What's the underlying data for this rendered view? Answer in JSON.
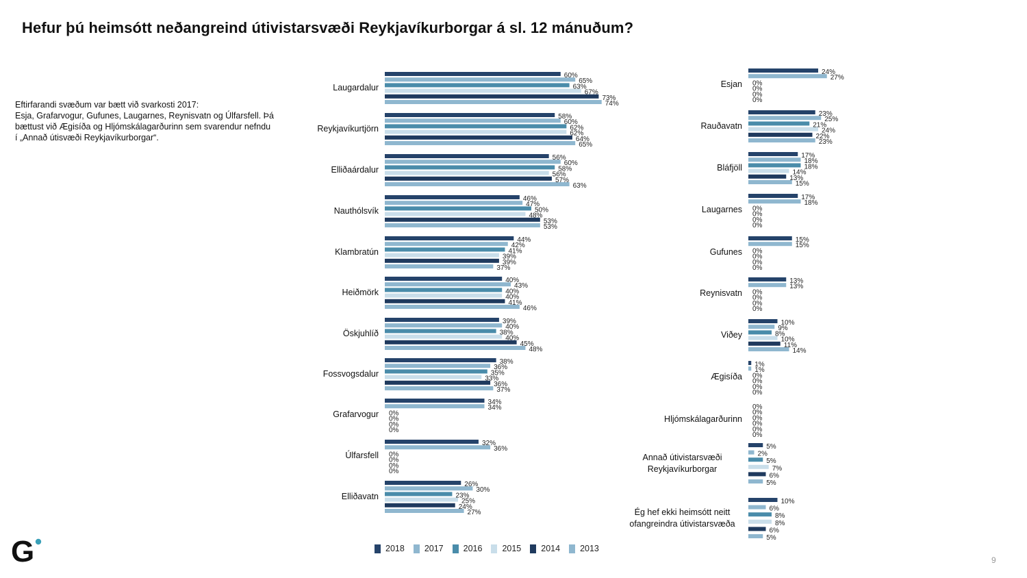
{
  "title": "Hefur þú heimsótt neðangreind útivistarsvæði Reykjavíkurborgar á sl. 12 mánuðum?",
  "note": {
    "line1": "Eftirfarandi svæðum var bætt við svarkosti 2017:",
    "line2": "Esja, Grafarvogur, Gufunes, Laugarnes, Reynisvatn og Úlfarsfell. Þá",
    "line3": "bættust við Ægisíða og Hljómskálagarðurinn sem svarendur nefndu",
    "line4": "í „Annað útisvæði Reykjavíkurborgar“."
  },
  "page_number": "9",
  "logo": {
    "text": "G",
    "dot_color": "#3aa0b8"
  },
  "chart_data": [
    {
      "type": "bar",
      "orientation": "horizontal",
      "unit": "%",
      "legend_position": "bottom",
      "grid": false,
      "categories": [
        "Laugardalur",
        "Reykjavíkurtjörn",
        "Elliðaárdalur",
        "Nauthólsvík",
        "Klambratún",
        "Heiðmörk",
        "Öskjuhlíð",
        "Fossvogsdalur",
        "Grafarvogur",
        "Úlfarsfell",
        "Elliðavatn"
      ],
      "series": [
        {
          "name": "2018",
          "color": "#25436a",
          "values": [
            60,
            58,
            56,
            46,
            44,
            40,
            39,
            38,
            34,
            32,
            26
          ]
        },
        {
          "name": "2017",
          "color": "#8fb7cf",
          "values": [
            65,
            60,
            60,
            47,
            42,
            43,
            40,
            36,
            34,
            36,
            30
          ]
        },
        {
          "name": "2016",
          "color": "#4a8caa",
          "values": [
            63,
            62,
            58,
            50,
            41,
            40,
            38,
            35,
            0,
            0,
            23
          ]
        },
        {
          "name": "2015",
          "color": "#c9deea",
          "values": [
            67,
            62,
            56,
            48,
            39,
            40,
            40,
            33,
            0,
            0,
            25
          ]
        },
        {
          "name": "2014",
          "color": "#1f3a5e",
          "values": [
            73,
            64,
            57,
            53,
            39,
            41,
            45,
            36,
            0,
            0,
            24
          ]
        },
        {
          "name": "2013",
          "color": "#8fb7cf",
          "values": [
            74,
            65,
            63,
            53,
            37,
            46,
            48,
            37,
            0,
            0,
            27
          ]
        }
      ]
    },
    {
      "type": "bar",
      "orientation": "horizontal",
      "unit": "%",
      "grid": false,
      "categories": [
        "Esjan",
        "Rauðavatn",
        "Bláfjöll",
        "Laugarnes",
        "Gufunes",
        "Reynisvatn",
        "Viðey",
        "Ægisíða",
        "Hljómskálagarðurinn",
        "Annað útivistarsvæði Reykjavíkurborgar",
        "Ég hef ekki heimsótt neitt ofangreindra útivistarsvæða"
      ],
      "series": [
        {
          "name": "2018",
          "color": "#25436a",
          "values": [
            24,
            23,
            17,
            17,
            15,
            13,
            10,
            1,
            0,
            5,
            10
          ]
        },
        {
          "name": "2017",
          "color": "#8fb7cf",
          "values": [
            27,
            25,
            18,
            18,
            15,
            13,
            9,
            1,
            0,
            2,
            6
          ]
        },
        {
          "name": "2016",
          "color": "#4a8caa",
          "values": [
            0,
            21,
            18,
            0,
            0,
            0,
            8,
            0,
            0,
            5,
            8
          ]
        },
        {
          "name": "2015",
          "color": "#c9deea",
          "values": [
            0,
            24,
            14,
            0,
            0,
            0,
            10,
            0,
            0,
            7,
            8
          ]
        },
        {
          "name": "2014",
          "color": "#1f3a5e",
          "values": [
            0,
            22,
            13,
            0,
            0,
            0,
            11,
            0,
            0,
            6,
            6
          ]
        },
        {
          "name": "2013",
          "color": "#8fb7cf",
          "values": [
            0,
            23,
            15,
            0,
            0,
            0,
            14,
            0,
            0,
            5,
            5
          ]
        }
      ]
    }
  ],
  "legend": [
    {
      "label": "2018",
      "color": "#25436a"
    },
    {
      "label": "2017",
      "color": "#8fb7cf"
    },
    {
      "label": "2016",
      "color": "#4a8caa"
    },
    {
      "label": "2015",
      "color": "#c9deea"
    },
    {
      "label": "2014",
      "color": "#1f3a5e"
    },
    {
      "label": "2013",
      "color": "#8fb7cf"
    }
  ]
}
